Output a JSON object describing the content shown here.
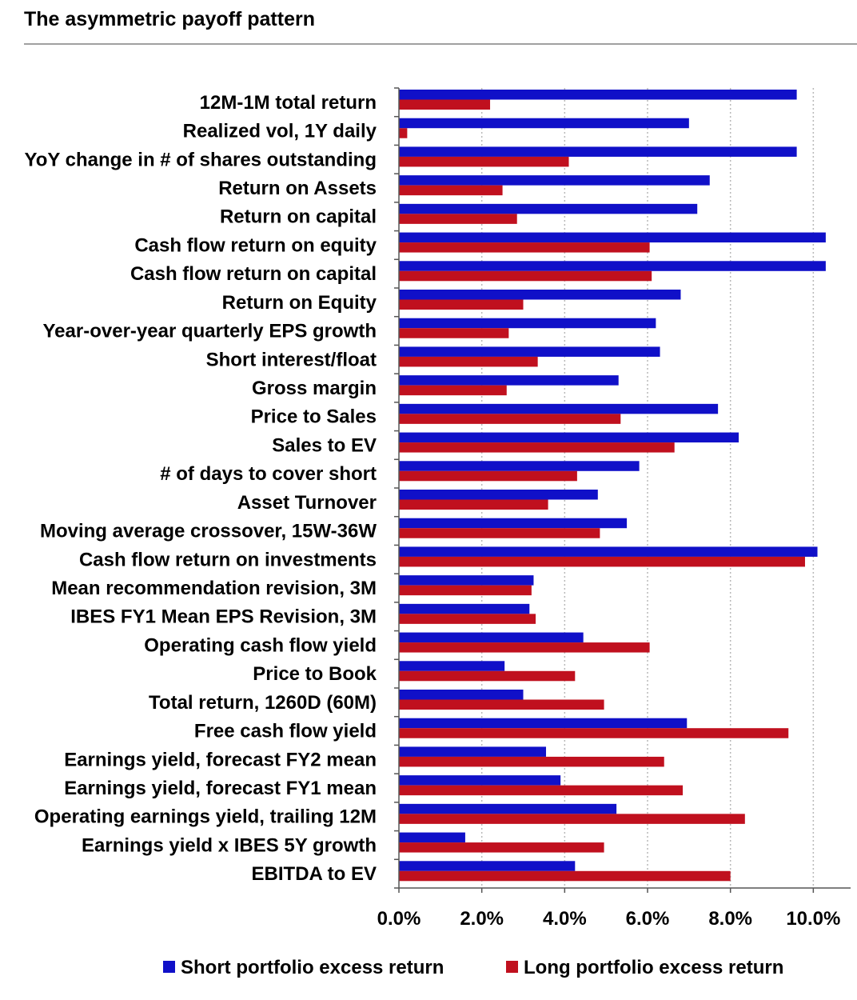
{
  "header": {
    "title": "The asymmetric payoff pattern"
  },
  "chart_data": {
    "type": "bar",
    "orientation": "horizontal",
    "title": "The asymmetric payoff pattern",
    "categories": [
      "12M-1M total return",
      "Realized vol, 1Y daily",
      "YoY change in # of shares outstanding",
      "Return on Assets",
      "Return on capital",
      "Cash flow return on equity",
      "Cash flow return on capital",
      "Return on Equity",
      "Year-over-year quarterly EPS growth",
      "Short interest/float",
      "Gross margin",
      "Price to Sales",
      "Sales to EV",
      "# of days to cover short",
      "Asset Turnover",
      "Moving average crossover, 15W-36W",
      "Cash flow return on investments",
      "Mean recommendation revision, 3M",
      "IBES FY1 Mean EPS Revision, 3M",
      "Operating cash flow yield",
      "Price to Book",
      "Total return, 1260D (60M)",
      "Free cash flow yield",
      "Earnings yield, forecast FY2 mean",
      "Earnings yield, forecast FY1 mean",
      "Operating earnings yield, trailing 12M",
      "Earnings yield x IBES 5Y growth",
      "EBITDA to EV"
    ],
    "series": [
      {
        "name": "Short portfolio excess return",
        "color": "#1010c8",
        "values": [
          9.6,
          7.0,
          9.6,
          7.5,
          7.2,
          10.3,
          10.3,
          6.8,
          6.2,
          6.3,
          5.3,
          7.7,
          8.2,
          5.8,
          4.8,
          5.5,
          10.1,
          3.25,
          3.15,
          4.45,
          2.55,
          3.0,
          6.95,
          3.55,
          3.9,
          5.25,
          1.6,
          4.25
        ]
      },
      {
        "name": "Long portfolio excess return",
        "color": "#c0101e",
        "values": [
          2.2,
          0.2,
          4.1,
          2.5,
          2.85,
          6.05,
          6.1,
          3.0,
          2.65,
          3.35,
          2.6,
          5.35,
          6.65,
          4.3,
          3.6,
          4.85,
          9.8,
          3.2,
          3.3,
          6.05,
          4.25,
          4.95,
          9.4,
          6.4,
          6.85,
          8.35,
          4.95,
          8.0
        ]
      }
    ],
    "xlim": [
      0,
      10.9
    ],
    "xticks": [
      "0.0%",
      "2.0%",
      "4.0%",
      "6.0%",
      "8.0%",
      "10.0%"
    ],
    "xtick_values": [
      0,
      2,
      4,
      6,
      8,
      10
    ],
    "grid": true,
    "legend_position": "bottom"
  }
}
